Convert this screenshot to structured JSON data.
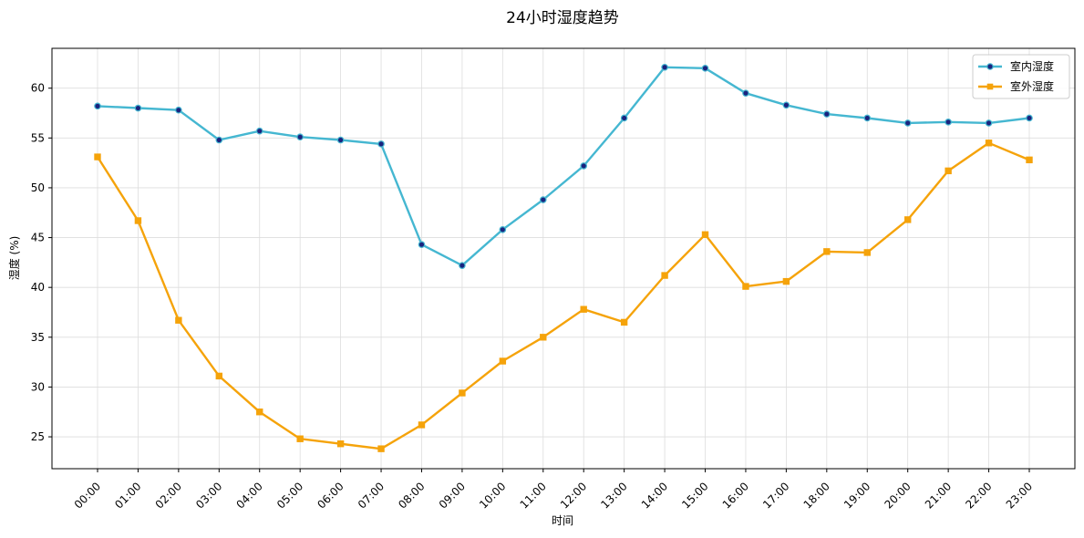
{
  "chart_data": {
    "type": "line",
    "title": "24小时湿度趋势",
    "xlabel": "时间",
    "ylabel": "湿度 (%)",
    "categories": [
      "00:00",
      "01:00",
      "02:00",
      "03:00",
      "04:00",
      "05:00",
      "06:00",
      "07:00",
      "08:00",
      "09:00",
      "10:00",
      "11:00",
      "12:00",
      "13:00",
      "14:00",
      "15:00",
      "16:00",
      "17:00",
      "18:00",
      "19:00",
      "20:00",
      "21:00",
      "22:00",
      "23:00"
    ],
    "ylim": [
      21.8,
      64.0
    ],
    "yticks": [
      25,
      30,
      35,
      40,
      45,
      50,
      55,
      60
    ],
    "grid": true,
    "legend_position": "top-right",
    "series": [
      {
        "name": "室内湿度",
        "color": "#45b7d1",
        "marker": "circle",
        "marker_face": "#1a237e",
        "values": [
          58.2,
          58.0,
          57.8,
          54.8,
          55.7,
          55.1,
          54.8,
          54.4,
          44.3,
          42.2,
          45.8,
          48.8,
          52.2,
          57.0,
          62.1,
          62.0,
          59.5,
          58.3,
          57.4,
          57.0,
          56.5,
          56.6,
          56.5,
          57.0
        ]
      },
      {
        "name": "室外湿度",
        "color": "#f5a30a",
        "marker": "square",
        "marker_face": "#f5a30a",
        "values": [
          53.1,
          46.7,
          36.7,
          31.1,
          27.5,
          24.8,
          24.3,
          23.8,
          26.2,
          29.4,
          32.6,
          35.0,
          37.8,
          36.5,
          41.2,
          45.3,
          40.1,
          40.6,
          43.6,
          43.5,
          46.8,
          51.7,
          54.5,
          52.8
        ]
      }
    ]
  }
}
